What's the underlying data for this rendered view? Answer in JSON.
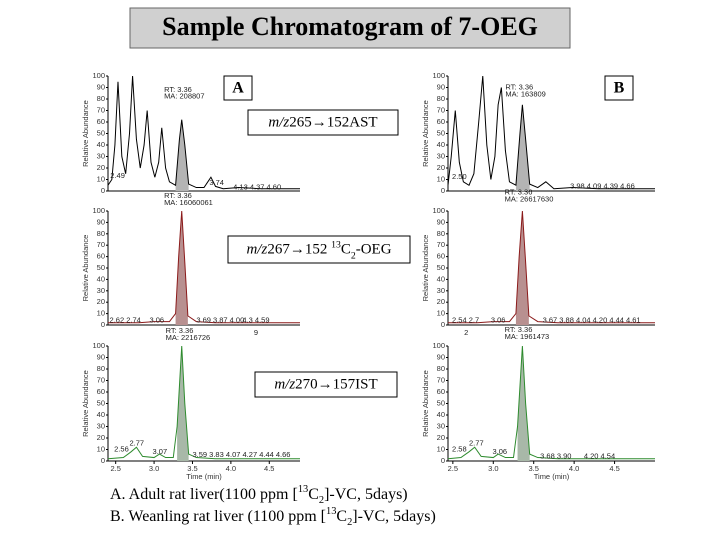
{
  "title": "Sample Chromatogram of 7-OEG",
  "captions": [
    [
      {
        "text": "A. Adult rat liver(1100 ppm ["
      },
      {
        "text": "13",
        "pos": "sup"
      },
      {
        "text": "C"
      },
      {
        "text": "2",
        "pos": "sub"
      },
      {
        "text": "]-VC, 5days)"
      }
    ],
    [
      {
        "text": "B. Weanling rat liver (1100 ppm ["
      },
      {
        "text": "13",
        "pos": "sup"
      },
      {
        "text": "C"
      },
      {
        "text": "2",
        "pos": "sub"
      },
      {
        "text": "]-VC, 5days)"
      }
    ]
  ],
  "chart_data": [
    {
      "type": "line",
      "panel_label": "A",
      "y_label": "Relative Abundance",
      "transition": {
        "mz": "m/z",
        "ions": "265→152",
        "compound": [
          {
            "text": "AST"
          }
        ]
      },
      "xlim": [
        2.4,
        4.9
      ],
      "ylim": [
        0,
        100
      ],
      "yticks": [
        0,
        10,
        20,
        30,
        40,
        50,
        60,
        70,
        80,
        90,
        100
      ],
      "color": "#000000",
      "fill_color": "#b4b4b4",
      "fill_range": [
        3.28,
        3.45
      ],
      "x": [
        2.4,
        2.45,
        2.49,
        2.53,
        2.58,
        2.63,
        2.68,
        2.72,
        2.77,
        2.82,
        2.87,
        2.91,
        2.96,
        3.01,
        3.06,
        3.1,
        3.15,
        3.2,
        3.28,
        3.33,
        3.36,
        3.4,
        3.45,
        3.55,
        3.65,
        3.7,
        3.74,
        3.8,
        3.9,
        4.1,
        4.4,
        4.9
      ],
      "values": [
        5,
        10,
        40,
        95,
        30,
        15,
        50,
        100,
        45,
        20,
        40,
        70,
        25,
        12,
        25,
        55,
        20,
        8,
        5,
        45,
        62,
        40,
        6,
        3,
        3,
        8,
        12,
        4,
        2,
        3,
        2,
        2
      ],
      "annotations": [
        {
          "text": "RT: 3.36",
          "x": 3.13,
          "y": 88
        },
        {
          "text": "MA: 208807",
          "x": 3.13,
          "y": 82
        },
        {
          "text": "2.49",
          "x": 2.43,
          "y": 13
        },
        {
          "text": "3.74",
          "x": 3.72,
          "y": 7
        },
        {
          "text": "4.13  4.37  4.60",
          "x": 4.03,
          "y": 3
        }
      ]
    },
    {
      "type": "line",
      "panel_label": "B",
      "y_label": "Relative Abundance",
      "xlim": [
        2.44,
        5.0
      ],
      "ylim": [
        0,
        100
      ],
      "yticks": [
        0,
        10,
        20,
        30,
        40,
        50,
        60,
        70,
        80,
        90,
        100
      ],
      "color": "#000000",
      "fill_color": "#b4b4b4",
      "fill_range": [
        3.28,
        3.45
      ],
      "x": [
        2.44,
        2.48,
        2.53,
        2.58,
        2.63,
        2.7,
        2.76,
        2.82,
        2.87,
        2.92,
        2.97,
        3.02,
        3.06,
        3.1,
        3.15,
        3.2,
        3.28,
        3.33,
        3.36,
        3.4,
        3.45,
        3.55,
        3.65,
        3.75,
        3.98,
        4.3,
        5.0
      ],
      "values": [
        5,
        30,
        70,
        25,
        8,
        5,
        15,
        60,
        100,
        40,
        10,
        30,
        75,
        90,
        35,
        8,
        5,
        50,
        75,
        45,
        6,
        3,
        8,
        2,
        3,
        2,
        2
      ],
      "annotations": [
        {
          "text": "RT: 3.36",
          "x": 3.15,
          "y": 90
        },
        {
          "text": "MA: 163809",
          "x": 3.15,
          "y": 84
        },
        {
          "text": "2.50",
          "x": 2.49,
          "y": 12
        },
        {
          "text": "3.98 4.09 4.39 4.66",
          "x": 3.95,
          "y": 4
        }
      ]
    },
    {
      "type": "line",
      "y_label": "Relative Abundance",
      "transition": {
        "mz": "m/z",
        "ions": "267→152",
        "compound": [
          {
            "text": " "
          },
          {
            "text": "13",
            "pos": "sup"
          },
          {
            "text": "C"
          },
          {
            "text": "2",
            "pos": "sub"
          },
          {
            "text": "-OEG"
          }
        ]
      },
      "xlim": [
        2.4,
        4.9
      ],
      "ylim": [
        0,
        100
      ],
      "yticks": [
        0,
        10,
        20,
        30,
        40,
        50,
        60,
        70,
        80,
        90,
        100
      ],
      "color": "#8b1a1a",
      "fill_color": "#b89090",
      "fill_range": [
        3.28,
        3.44
      ],
      "x": [
        2.4,
        2.6,
        2.8,
        3.0,
        3.2,
        3.28,
        3.32,
        3.36,
        3.4,
        3.44,
        3.55,
        3.8,
        4.2,
        4.9
      ],
      "values": [
        2,
        2,
        2,
        3,
        3,
        10,
        60,
        100,
        55,
        8,
        3,
        2,
        2,
        2
      ],
      "annotations": [
        {
          "text": "RT: 3.36",
          "x": 3.13,
          "y": 113
        },
        {
          "text": "MA: 16060061",
          "x": 3.13,
          "y": 107
        },
        {
          "text": "2.62 2.74",
          "x": 2.42,
          "y": 4
        },
        {
          "text": "3.06",
          "x": 2.94,
          "y": 4
        },
        {
          "text": "3.69 3.87 4.00",
          "x": 3.55,
          "y": 4
        },
        {
          "text": "4.3  4.59",
          "x": 4.15,
          "y": 4
        },
        {
          "text": "9",
          "x": 4.3,
          "y": -7
        }
      ]
    },
    {
      "type": "line",
      "y_label": "Relative Abundance",
      "xlim": [
        2.44,
        5.0
      ],
      "ylim": [
        0,
        100
      ],
      "yticks": [
        0,
        10,
        20,
        30,
        40,
        50,
        60,
        70,
        80,
        90,
        100
      ],
      "color": "#8b1a1a",
      "fill_color": "#b89090",
      "fill_range": [
        3.28,
        3.44
      ],
      "x": [
        2.44,
        2.6,
        2.8,
        3.0,
        3.2,
        3.28,
        3.32,
        3.36,
        3.4,
        3.44,
        3.55,
        3.8,
        4.2,
        5.0
      ],
      "values": [
        2,
        2,
        2,
        3,
        3,
        10,
        60,
        100,
        55,
        8,
        3,
        2,
        2,
        2
      ],
      "annotations": [
        {
          "text": "RT: 3.36",
          "x": 3.14,
          "y": 116
        },
        {
          "text": "MA: 26617630",
          "x": 3.14,
          "y": 110
        },
        {
          "text": "2.54 2.7",
          "x": 2.49,
          "y": 4
        },
        {
          "text": "2",
          "x": 2.64,
          "y": -7
        },
        {
          "text": "3.06",
          "x": 2.97,
          "y": 4
        },
        {
          "text": "3.67 3.88 4.04 4.20 4.44 4.61",
          "x": 3.61,
          "y": 4
        }
      ]
    },
    {
      "type": "line",
      "y_label": "Relative Abundance",
      "x_label": "Time (min)",
      "transition": {
        "mz": "m/z",
        "ions": "270→157",
        "compound": [
          {
            "text": "IST"
          }
        ]
      },
      "xlim": [
        2.4,
        4.9
      ],
      "ylim": [
        0,
        100
      ],
      "yticks": [
        0,
        10,
        20,
        30,
        40,
        50,
        60,
        70,
        80,
        90,
        100
      ],
      "xticks": [
        2.5,
        {
          "value": 3,
          "label": "3.0"
        },
        3.5,
        {
          "value": 4,
          "label": "4.0"
        },
        4.5
      ],
      "color": "#2e8b2e",
      "fill_color": "#a8b8a8",
      "fill_range": [
        3.3,
        3.45
      ],
      "x": [
        2.4,
        2.6,
        2.7,
        2.77,
        2.85,
        3.0,
        3.07,
        3.15,
        3.25,
        3.3,
        3.36,
        3.4,
        3.45,
        3.55,
        3.8,
        4.2,
        4.9
      ],
      "values": [
        2,
        3,
        8,
        12,
        4,
        3,
        6,
        3,
        3,
        30,
        100,
        50,
        6,
        3,
        2,
        2,
        2
      ],
      "annotations": [
        {
          "text": "RT: 3.36",
          "x": 3.15,
          "y": 113
        },
        {
          "text": "MA: 2216726",
          "x": 3.15,
          "y": 107
        },
        {
          "text": "2.56",
          "x": 2.48,
          "y": 10
        },
        {
          "text": "2.77",
          "x": 2.68,
          "y": 15
        },
        {
          "text": "3.07",
          "x": 2.98,
          "y": 8
        },
        {
          "text": "3.59 3.83 4.07 4.27 4.44 4.66",
          "x": 3.5,
          "y": 5
        }
      ]
    },
    {
      "type": "line",
      "y_label": "Relative Abundance",
      "x_label": "Time (min)",
      "xlim": [
        2.44,
        5.0
      ],
      "ylim": [
        0,
        100
      ],
      "yticks": [
        0,
        10,
        20,
        30,
        40,
        50,
        60,
        70,
        80,
        90,
        100
      ],
      "xticks": [
        2.5,
        {
          "value": 3,
          "label": "3.0"
        },
        3.5,
        {
          "value": 4,
          "label": "4.0"
        },
        4.5
      ],
      "color": "#2e8b2e",
      "fill_color": "#a8b8a8",
      "fill_range": [
        3.3,
        3.45
      ],
      "x": [
        2.44,
        2.6,
        2.7,
        2.77,
        2.85,
        3.0,
        3.06,
        3.15,
        3.25,
        3.3,
        3.36,
        3.4,
        3.45,
        3.55,
        3.8,
        4.2,
        5.0
      ],
      "values": [
        2,
        3,
        8,
        12,
        4,
        3,
        6,
        3,
        3,
        30,
        100,
        50,
        6,
        3,
        2,
        2,
        2
      ],
      "annotations": [
        {
          "text": "RT: 3.36",
          "x": 3.14,
          "y": 114
        },
        {
          "text": "MA: 1961473",
          "x": 3.14,
          "y": 108
        },
        {
          "text": "2.58",
          "x": 2.49,
          "y": 10
        },
        {
          "text": "2.77",
          "x": 2.7,
          "y": 15
        },
        {
          "text": "3.06",
          "x": 2.99,
          "y": 8
        },
        {
          "text": "3.68  3.90",
          "x": 3.58,
          "y": 4
        },
        {
          "text": "4.20  4.54",
          "x": 4.12,
          "y": 4
        }
      ]
    }
  ]
}
